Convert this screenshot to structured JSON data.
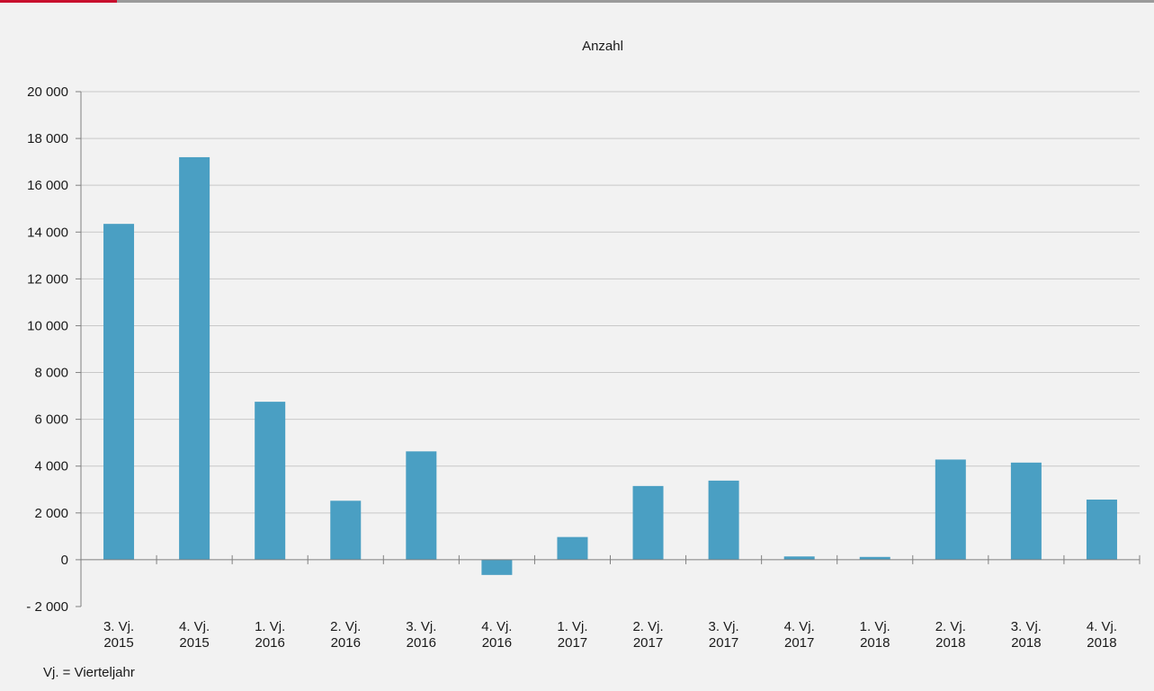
{
  "colors": {
    "accent": "#c8102e",
    "bar": "#4a9fc3",
    "grid": "#c8c8c8",
    "axis": "#808080",
    "background": "#f2f2f2"
  },
  "chart_data": {
    "type": "bar",
    "title": "Anzahl",
    "xlabel": "",
    "ylabel": "",
    "footnote": "Vj. = Vierteljahr",
    "ylim": [
      -2000,
      20000
    ],
    "yticks": [
      -2000,
      0,
      2000,
      4000,
      6000,
      8000,
      10000,
      12000,
      14000,
      16000,
      18000,
      20000
    ],
    "ytick_labels": [
      "- 2 000",
      "0",
      "2 000",
      "4 000",
      "6 000",
      "8 000",
      "10 000",
      "12 000",
      "14 000",
      "16 000",
      "18 000",
      "20 000"
    ],
    "grid": true,
    "legend": "none",
    "categories": [
      [
        "3. Vj.",
        "2015"
      ],
      [
        "4. Vj.",
        "2015"
      ],
      [
        "1. Vj.",
        "2016"
      ],
      [
        "2. Vj.",
        "2016"
      ],
      [
        "3. Vj.",
        "2016"
      ],
      [
        "4. Vj.",
        "2016"
      ],
      [
        "1. Vj.",
        "2017"
      ],
      [
        "2. Vj.",
        "2017"
      ],
      [
        "3. Vj.",
        "2017"
      ],
      [
        "4. Vj.",
        "2017"
      ],
      [
        "1. Vj.",
        "2018"
      ],
      [
        "2. Vj.",
        "2018"
      ],
      [
        "3. Vj.",
        "2018"
      ],
      [
        "4. Vj.",
        "2018"
      ]
    ],
    "values": [
      14350,
      17200,
      6750,
      2520,
      4630,
      -650,
      970,
      3150,
      3380,
      140,
      120,
      4280,
      4150,
      2570
    ]
  }
}
